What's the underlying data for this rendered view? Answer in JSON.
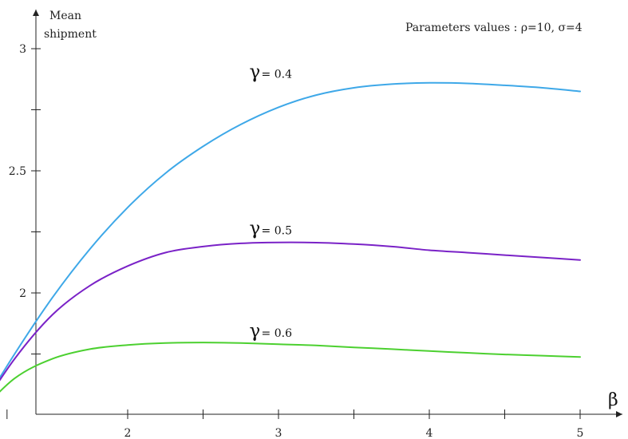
{
  "chart_data": {
    "type": "line",
    "annotation": "Parameters values : ρ=10, σ=4",
    "ylabel_line1": "Mean",
    "ylabel_line2": "shipment",
    "xlabel": "β",
    "xlim": [
      1.0,
      5.3
    ],
    "ylim": [
      1.5,
      3.15
    ],
    "x_ticks": [
      1.2,
      2,
      2.5,
      3,
      3.5,
      4,
      4.5,
      5
    ],
    "x_tick_labels": [
      {
        "x": 2,
        "label": "2"
      },
      {
        "x": 3,
        "label": "3"
      },
      {
        "x": 4,
        "label": "4"
      },
      {
        "x": 5,
        "label": "5"
      }
    ],
    "y_ticks": [
      1.75,
      2,
      2.25,
      2.5,
      2.75,
      3
    ],
    "y_tick_labels": [
      {
        "y": 2,
        "label": "2"
      },
      {
        "y": 2.5,
        "label": "2.5"
      },
      {
        "y": 3,
        "label": "3"
      }
    ],
    "gamma_symbol": "γ",
    "series": [
      {
        "name": "= 0.4",
        "color": "#3ea8e8",
        "label_x": 2.95,
        "label_y": 2.88,
        "x": [
          1.0,
          1.25,
          1.5,
          1.75,
          2.0,
          2.25,
          2.5,
          2.75,
          3.0,
          3.25,
          3.5,
          3.75,
          4.0,
          4.25,
          4.5,
          4.75,
          5.0
        ],
        "y": [
          1.5,
          1.75,
          1.98,
          2.18,
          2.35,
          2.49,
          2.6,
          2.69,
          2.76,
          2.81,
          2.84,
          2.855,
          2.86,
          2.858,
          2.85,
          2.84,
          2.825
        ]
      },
      {
        "name": "= 0.5",
        "color": "#7a22c7",
        "label_x": 2.95,
        "label_y": 2.24,
        "x": [
          1.0,
          1.25,
          1.5,
          1.75,
          2.0,
          2.25,
          2.5,
          2.75,
          3.0,
          3.25,
          3.5,
          3.75,
          4.0,
          4.25,
          4.5,
          4.75,
          5.0
        ],
        "y": [
          1.5,
          1.73,
          1.91,
          2.03,
          2.11,
          2.165,
          2.19,
          2.203,
          2.207,
          2.206,
          2.2,
          2.19,
          2.175,
          2.165,
          2.155,
          2.145,
          2.135
        ]
      },
      {
        "name": "= 0.6",
        "color": "#4cd030",
        "label_x": 2.95,
        "label_y": 1.82,
        "x": [
          1.0,
          1.25,
          1.5,
          1.75,
          2.0,
          2.25,
          2.5,
          2.75,
          3.0,
          3.25,
          3.5,
          3.75,
          4.0,
          4.25,
          4.5,
          4.75,
          5.0
        ],
        "y": [
          1.5,
          1.65,
          1.73,
          1.77,
          1.787,
          1.795,
          1.797,
          1.795,
          1.79,
          1.785,
          1.777,
          1.77,
          1.762,
          1.755,
          1.748,
          1.743,
          1.738
        ]
      }
    ]
  }
}
